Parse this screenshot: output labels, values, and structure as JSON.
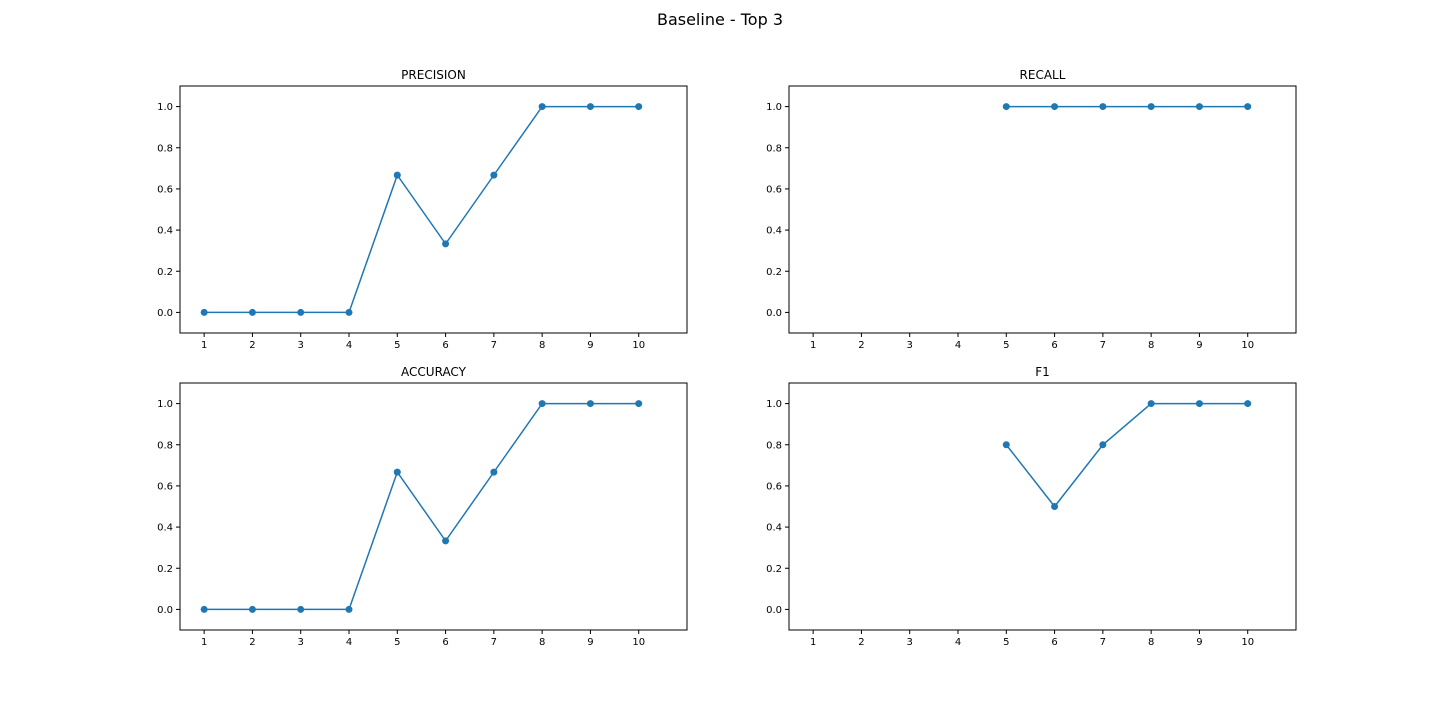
{
  "figure": {
    "title": "Baseline - Top 3"
  },
  "colors": {
    "series": "#1f77b4",
    "axes": "#000000",
    "background": "#ffffff"
  },
  "chart_data": [
    {
      "type": "line",
      "title": "PRECISION",
      "xlabel": "",
      "ylabel": "",
      "x": [
        1,
        2,
        3,
        4,
        5,
        6,
        7,
        8,
        9,
        10
      ],
      "values": [
        0.0,
        0.0,
        0.0,
        0.0,
        0.667,
        0.333,
        0.667,
        1.0,
        1.0,
        1.0
      ],
      "xlim": [
        0.5,
        11
      ],
      "ylim": [
        -0.1,
        1.1
      ],
      "xticks": [
        1,
        2,
        3,
        4,
        5,
        6,
        7,
        8,
        9,
        10
      ],
      "yticks": [
        0.0,
        0.2,
        0.4,
        0.6,
        0.8,
        1.0
      ],
      "grid": false,
      "marker": "circle"
    },
    {
      "type": "line",
      "title": "RECALL",
      "xlabel": "",
      "ylabel": "",
      "x": [
        1,
        2,
        3,
        4,
        5,
        6,
        7,
        8,
        9,
        10
      ],
      "values": [
        null,
        null,
        null,
        null,
        1.0,
        1.0,
        1.0,
        1.0,
        1.0,
        1.0
      ],
      "xlim": [
        0.5,
        11
      ],
      "ylim": [
        -0.1,
        1.1
      ],
      "xticks": [
        1,
        2,
        3,
        4,
        5,
        6,
        7,
        8,
        9,
        10
      ],
      "yticks": [
        0.0,
        0.2,
        0.4,
        0.6,
        0.8,
        1.0
      ],
      "grid": false,
      "marker": "circle"
    },
    {
      "type": "line",
      "title": "ACCURACY",
      "xlabel": "",
      "ylabel": "",
      "x": [
        1,
        2,
        3,
        4,
        5,
        6,
        7,
        8,
        9,
        10
      ],
      "values": [
        0.0,
        0.0,
        0.0,
        0.0,
        0.667,
        0.333,
        0.667,
        1.0,
        1.0,
        1.0
      ],
      "xlim": [
        0.5,
        11
      ],
      "ylim": [
        -0.1,
        1.1
      ],
      "xticks": [
        1,
        2,
        3,
        4,
        5,
        6,
        7,
        8,
        9,
        10
      ],
      "yticks": [
        0.0,
        0.2,
        0.4,
        0.6,
        0.8,
        1.0
      ],
      "grid": false,
      "marker": "circle"
    },
    {
      "type": "line",
      "title": "F1",
      "xlabel": "",
      "ylabel": "",
      "x": [
        1,
        2,
        3,
        4,
        5,
        6,
        7,
        8,
        9,
        10
      ],
      "values": [
        null,
        null,
        null,
        null,
        0.8,
        0.5,
        0.8,
        1.0,
        1.0,
        1.0
      ],
      "xlim": [
        0.5,
        11
      ],
      "ylim": [
        -0.1,
        1.1
      ],
      "xticks": [
        1,
        2,
        3,
        4,
        5,
        6,
        7,
        8,
        9,
        10
      ],
      "yticks": [
        0.0,
        0.2,
        0.4,
        0.6,
        0.8,
        1.0
      ],
      "grid": false,
      "marker": "circle"
    }
  ]
}
